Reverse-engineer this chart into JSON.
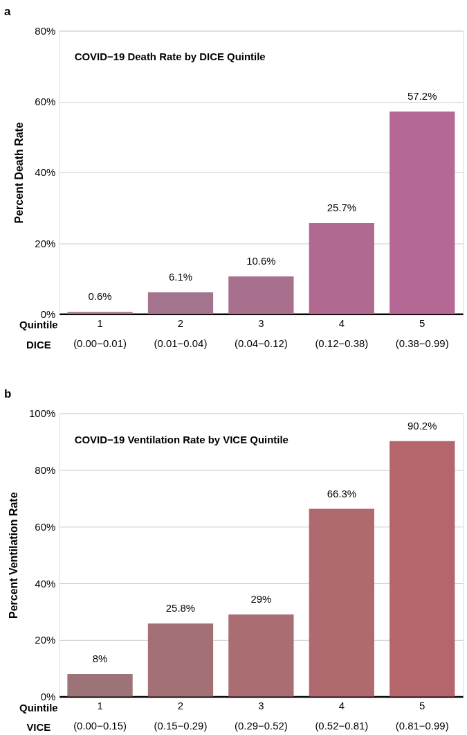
{
  "chart_data": [
    {
      "type": "bar",
      "title": "COVID−19 Death Rate by DICE Quintile",
      "ylabel": "Percent Death Rate",
      "categories": [
        "1\n(0.00−0.01)",
        "2\n(0.01−0.04)",
        "3\n(0.04−0.12)",
        "4\n(0.12−0.38)",
        "5\n(0.38−0.99)"
      ],
      "values": [
        0.6,
        6.1,
        10.6,
        25.7,
        57.2
      ],
      "colors": [
        "#a7778c",
        "#a4738d",
        "#a9708e",
        "#b06a91",
        "#b56894"
      ],
      "value_labels": [
        "0.6%",
        "6.1%",
        "10.6%",
        "25.7%",
        "57.2%"
      ],
      "ylim": [
        0,
        80
      ],
      "yticks": [
        {
          "value": 0,
          "label": "0%"
        },
        {
          "value": 20,
          "label": "20%"
        },
        {
          "value": 40,
          "label": "40%"
        },
        {
          "value": 60,
          "label": "60%"
        },
        {
          "value": 80,
          "label": "80%"
        }
      ],
      "grid": "y",
      "annotations": [
        "a",
        "Quintile",
        "DICE"
      ]
    },
    {
      "type": "bar",
      "title": "COVID−19 Ventilation Rate by VICE Quintile",
      "ylabel": "Percent Ventilation Rate",
      "categories": [
        "1\n(0.00−0.15)",
        "2\n(0.15−0.29)",
        "3\n(0.29−0.52)",
        "4\n(0.52−0.81)",
        "5\n(0.81−0.99)"
      ],
      "values": [
        8,
        25.8,
        29,
        66.3,
        90.2
      ],
      "colors": [
        "#9c7376",
        "#a37075",
        "#a96d72",
        "#b06a6f",
        "#b5666c"
      ],
      "value_labels": [
        "8%",
        "25.8%",
        "29%",
        "66.3%",
        "90.2%"
      ],
      "ylim": [
        0,
        100
      ],
      "yticks": [
        {
          "value": 0,
          "label": "0%"
        },
        {
          "value": 20,
          "label": "20%"
        },
        {
          "value": 40,
          "label": "40%"
        },
        {
          "value": 60,
          "label": "60%"
        },
        {
          "value": 80,
          "label": "80%"
        },
        {
          "value": 100,
          "label": "100%"
        }
      ],
      "grid": "y",
      "annotations": [
        "b",
        "Quintile",
        "VICE"
      ]
    }
  ]
}
